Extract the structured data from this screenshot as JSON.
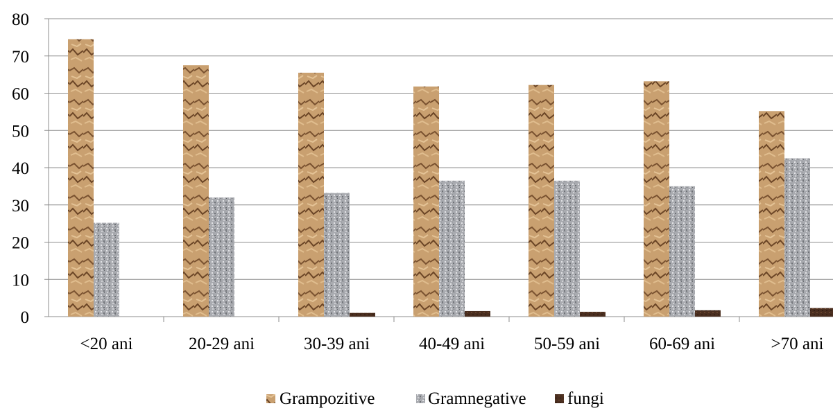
{
  "chart_data": {
    "type": "bar",
    "categories": [
      "<20 ani",
      "20-29 ani",
      "30-39 ani",
      "40-49 ani",
      "50-59 ani",
      "60-69 ani",
      ">70 ani"
    ],
    "series": [
      {
        "name": "Grampozitive",
        "values": [
          74.5,
          67.5,
          65.5,
          61.8,
          62.2,
          63.2,
          55.2
        ],
        "color": "#c9a070"
      },
      {
        "name": "Gramnegative",
        "values": [
          25.2,
          32.0,
          33.2,
          36.5,
          36.5,
          35.0,
          42.5
        ],
        "color": "#a9abb0"
      },
      {
        "name": "fungi",
        "values": [
          0,
          0,
          1.0,
          1.5,
          1.3,
          1.7,
          2.3
        ],
        "color": "#4a2e1f"
      }
    ],
    "ylim": [
      0,
      80
    ],
    "yticks": [
      0,
      10,
      20,
      30,
      40,
      50,
      60,
      70,
      80
    ],
    "grid": true,
    "legend_position": "bottom",
    "title": "",
    "xlabel": "",
    "ylabel": ""
  }
}
